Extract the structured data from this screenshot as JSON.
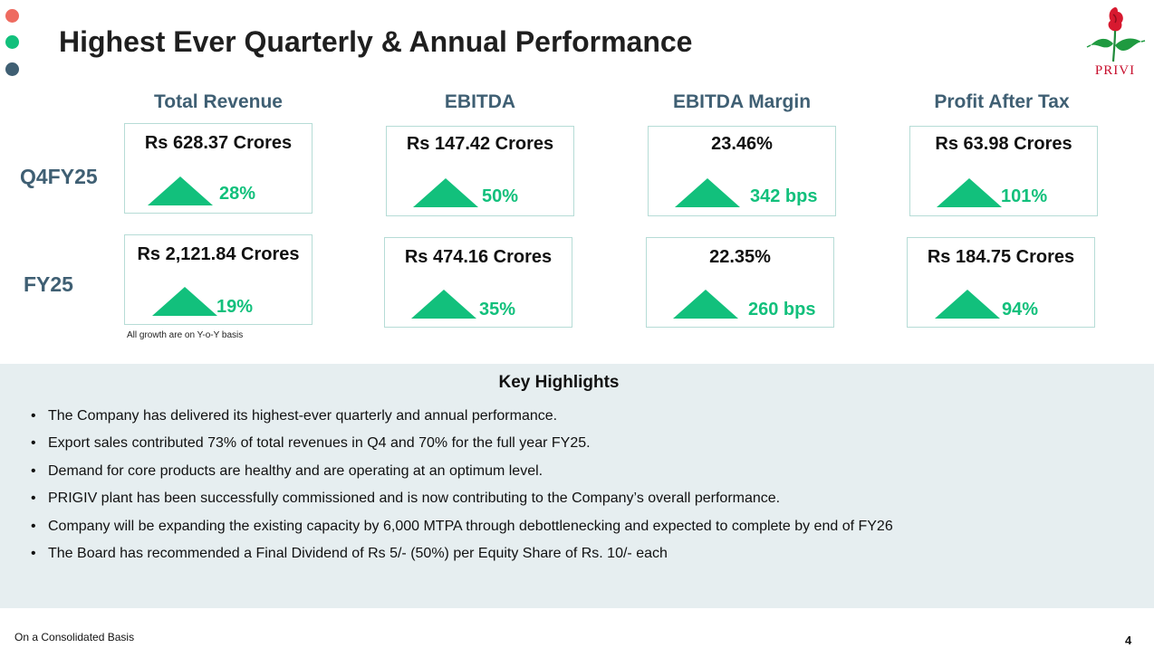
{
  "colors": {
    "accent_green": "#12c07c",
    "heading_blue": "#3f5f73",
    "logo_red": "#c8102e",
    "dot_red": "#ee6b60",
    "dot_green": "#12c07c",
    "dot_slate": "#3f5f73"
  },
  "title": "Highest Ever Quarterly & Annual Performance",
  "logo": {
    "text": "PRIVI",
    "icon": "rose-logo-icon"
  },
  "columns": [
    "Total Revenue",
    "EBITDA",
    "EBITDA Margin",
    "Profit After Tax"
  ],
  "rows": [
    {
      "label": "Q4FY25",
      "cards": [
        {
          "value": "Rs 628.37 Crores",
          "growth": "28%",
          "icon": "up-triangle-icon"
        },
        {
          "value": "Rs 147.42 Crores",
          "growth": "50%",
          "icon": "up-triangle-icon"
        },
        {
          "value": "23.46%",
          "growth": "342 bps",
          "icon": "up-triangle-icon"
        },
        {
          "value": "Rs 63.98 Crores",
          "growth": "101%",
          "icon": "up-triangle-icon"
        }
      ]
    },
    {
      "label": "FY25",
      "cards": [
        {
          "value": "Rs 2,121.84 Crores",
          "growth": "19%",
          "icon": "up-triangle-icon"
        },
        {
          "value": "Rs 474.16 Crores",
          "growth": "35%",
          "icon": "up-triangle-icon"
        },
        {
          "value": "22.35%",
          "growth": "260 bps",
          "icon": "up-triangle-icon"
        },
        {
          "value": "Rs 184.75 Crores",
          "growth": "94%",
          "icon": "up-triangle-icon"
        }
      ]
    }
  ],
  "growth_note": "All growth are on Y-o-Y basis",
  "highlights": {
    "title": "Key Highlights",
    "items": [
      "The Company has delivered its highest-ever quarterly and annual performance.",
      "Export sales contributed 73% of total revenues in Q4 and 70% for the full year FY25.",
      "Demand for core products are healthy and are operating at an optimum level.",
      "PRIGIV plant has been successfully commissioned and is now contributing to the Company’s overall performance.",
      "Company will be expanding the existing capacity by 6,000 MTPA through debottlenecking and expected to complete by end of FY26",
      "The Board has recommended a Final Dividend of Rs 5/- (50%) per Equity Share of Rs. 10/- each"
    ]
  },
  "footer": {
    "note": "On a Consolidated Basis",
    "page_number": "4"
  }
}
